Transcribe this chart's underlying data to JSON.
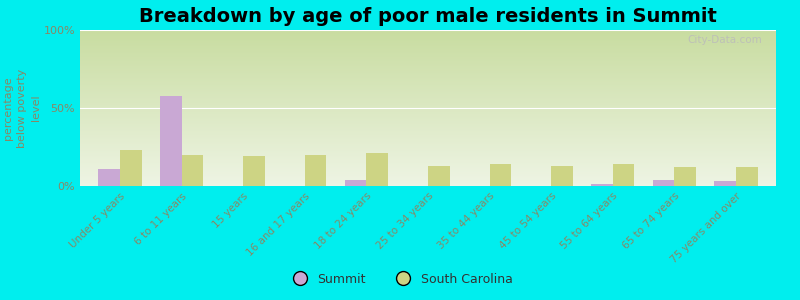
{
  "title": "Breakdown by age of poor male residents in Summit",
  "ylabel": "percentage\nbelow poverty\nlevel",
  "categories": [
    "Under 5 years",
    "6 to 11 years",
    "15 years",
    "16 and 17 years",
    "18 to 24 years",
    "25 to 34 years",
    "35 to 44 years",
    "45 to 54 years",
    "55 to 64 years",
    "65 to 74 years",
    "75 years and over"
  ],
  "summit_values": [
    11,
    58,
    0,
    0,
    4,
    0,
    0,
    0,
    1,
    4,
    3
  ],
  "sc_values": [
    23,
    20,
    19,
    20,
    21,
    13,
    14,
    13,
    14,
    12,
    12
  ],
  "summit_color": "#c9a8d4",
  "sc_color": "#cdd484",
  "background_color": "#00eeee",
  "grad_top_color": "#c8dca0",
  "grad_bottom_color": "#eef4e4",
  "ylim": [
    0,
    100
  ],
  "yticks": [
    0,
    50,
    100
  ],
  "ytick_labels": [
    "0%",
    "50%",
    "100%"
  ],
  "bar_width": 0.35,
  "legend_summit": "Summit",
  "legend_sc": "South Carolina",
  "title_fontsize": 14,
  "watermark": "City-Data.com",
  "tick_color": "#888866",
  "label_color": "#888866"
}
